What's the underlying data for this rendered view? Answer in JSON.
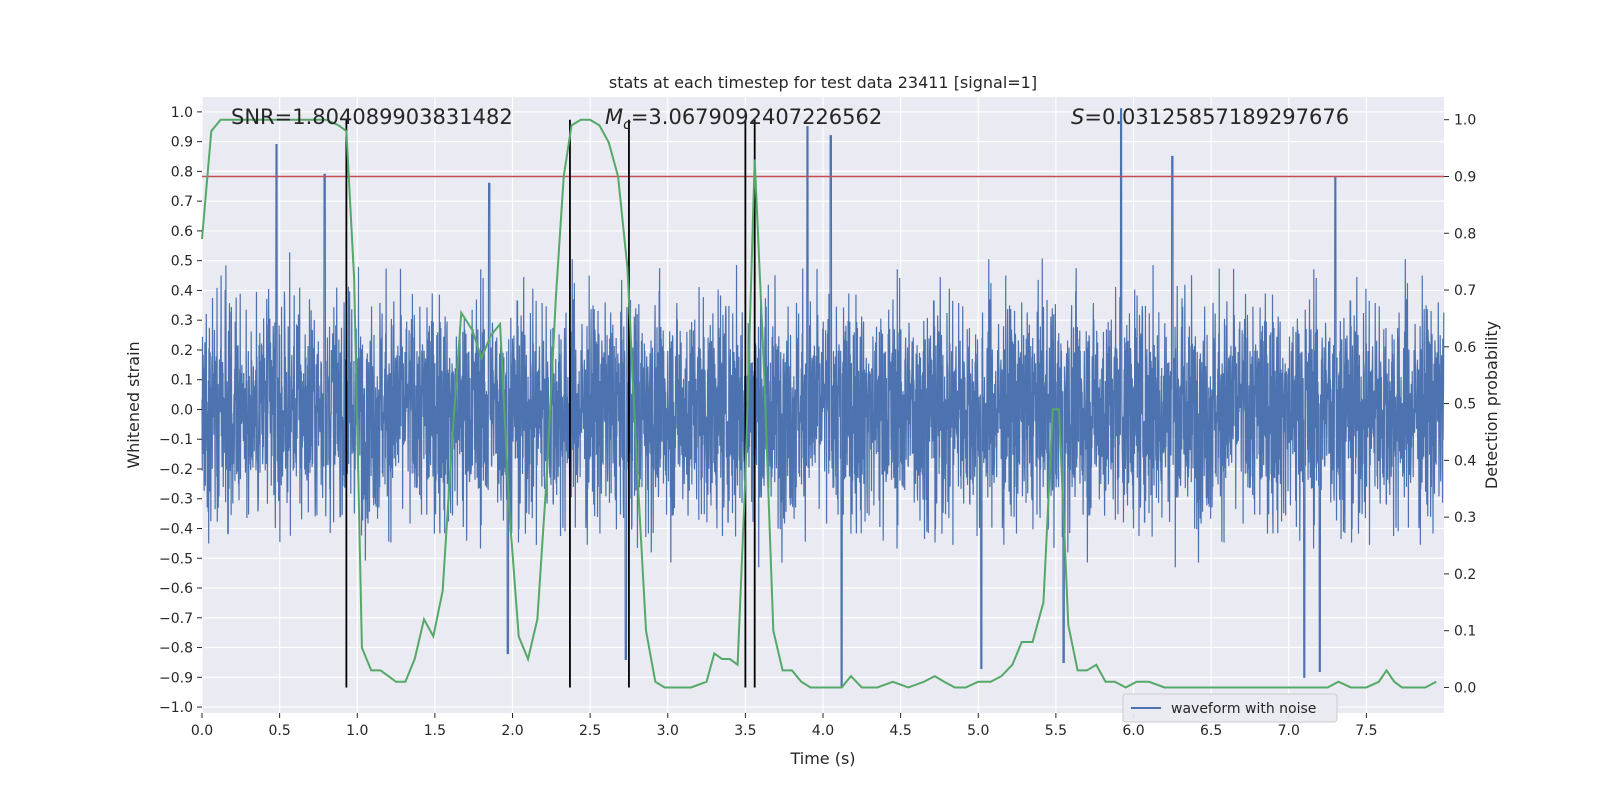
{
  "chart_data": {
    "type": "line",
    "title": "stats at each timestep for test data 23411 [signal=1]",
    "xlabel": "Time (s)",
    "ylabel": "Whitened strain",
    "y2label": "Detection probability",
    "xlim": [
      0.0,
      8.0
    ],
    "ylim": [
      -1.02,
      1.05
    ],
    "y2lim": [
      -0.045,
      1.04
    ],
    "x_ticks": [
      "0.0",
      "0.5",
      "1.0",
      "1.5",
      "2.0",
      "2.5",
      "3.0",
      "3.5",
      "4.0",
      "4.5",
      "5.0",
      "5.5",
      "6.0",
      "6.5",
      "7.0",
      "7.5"
    ],
    "y_ticks": [
      "1.0",
      "0.9",
      "0.8",
      "0.7",
      "0.6",
      "0.5",
      "0.4",
      "0.3",
      "0.2",
      "0.1",
      "0.0",
      "−0.1",
      "−0.2",
      "−0.3",
      "−0.4",
      "−0.5",
      "−0.6",
      "−0.7",
      "−0.8",
      "−0.9",
      "−1.0"
    ],
    "y2_ticks": [
      "1.0",
      "0.9",
      "0.8",
      "0.7",
      "0.6",
      "0.5",
      "0.4",
      "0.3",
      "0.2",
      "0.1",
      "0.0"
    ],
    "grid": true,
    "legend": {
      "placement": "bottom-right",
      "entries": [
        "waveform with noise"
      ]
    },
    "annotations": {
      "snr": "SNR=1.804089903831482",
      "mc_symbol": "M",
      "mc_sub": "c",
      "mc_value": "=3.0679092407226562",
      "s_symbol": "S",
      "s_value": "=0.03125857189297676"
    },
    "threshold_y2": 0.9,
    "vertical_lines_x": [
      0.93,
      2.37,
      2.75,
      3.5,
      3.56
    ],
    "vertical_lines_top_y2": 1.0,
    "series": [
      {
        "name": "waveform with noise",
        "color": "#4c72b0",
        "description_envelope": {
          "upper_typical": 0.6,
          "lower_typical": -0.55,
          "spikes_up": [
            [
              0.48,
              0.89
            ],
            [
              0.79,
              0.79
            ],
            [
              1.85,
              0.76
            ],
            [
              3.9,
              0.95
            ],
            [
              4.05,
              0.92
            ],
            [
              5.92,
              1.01
            ],
            [
              6.25,
              0.85
            ],
            [
              7.3,
              0.78
            ]
          ],
          "spikes_down": [
            [
              2.73,
              -0.84
            ],
            [
              1.97,
              -0.82
            ],
            [
              4.12,
              -0.93
            ],
            [
              5.02,
              -0.87
            ],
            [
              5.55,
              -0.85
            ],
            [
              7.1,
              -0.9
            ],
            [
              7.2,
              -0.88
            ]
          ]
        }
      },
      {
        "name": "detection probability",
        "color": "#55a868",
        "x": [
          0.0,
          0.06,
          0.12,
          0.2,
          0.3,
          0.4,
          0.5,
          0.6,
          0.7,
          0.8,
          0.88,
          0.93,
          0.98,
          1.03,
          1.09,
          1.15,
          1.2,
          1.25,
          1.31,
          1.37,
          1.43,
          1.49,
          1.55,
          1.61,
          1.67,
          1.74,
          1.8,
          1.86,
          1.92,
          1.98,
          2.04,
          2.1,
          2.16,
          2.22,
          2.28,
          2.33,
          2.38,
          2.44,
          2.5,
          2.56,
          2.62,
          2.68,
          2.74,
          2.8,
          2.86,
          2.92,
          2.98,
          3.05,
          3.15,
          3.25,
          3.3,
          3.35,
          3.4,
          3.45,
          3.5,
          3.56,
          3.62,
          3.68,
          3.74,
          3.8,
          3.86,
          3.92,
          3.98,
          4.05,
          4.12,
          4.18,
          4.25,
          4.35,
          4.45,
          4.55,
          4.65,
          4.72,
          4.78,
          4.85,
          4.92,
          5.0,
          5.08,
          5.15,
          5.22,
          5.28,
          5.35,
          5.42,
          5.48,
          5.52,
          5.58,
          5.64,
          5.7,
          5.76,
          5.82,
          5.88,
          5.95,
          6.02,
          6.1,
          6.2,
          6.35,
          6.5,
          6.65,
          6.8,
          6.95,
          7.1,
          7.25,
          7.32,
          7.4,
          7.5,
          7.58,
          7.63,
          7.68,
          7.73,
          7.8,
          7.88,
          7.95
        ],
        "y": [
          0.79,
          0.98,
          1.0,
          1.0,
          1.0,
          1.0,
          1.0,
          1.0,
          1.0,
          1.0,
          0.99,
          0.98,
          0.72,
          0.07,
          0.03,
          0.03,
          0.02,
          0.01,
          0.01,
          0.05,
          0.12,
          0.09,
          0.17,
          0.43,
          0.66,
          0.63,
          0.58,
          0.62,
          0.64,
          0.31,
          0.09,
          0.05,
          0.12,
          0.37,
          0.69,
          0.9,
          0.99,
          1.0,
          1.0,
          0.99,
          0.96,
          0.9,
          0.74,
          0.4,
          0.1,
          0.01,
          0.0,
          0.0,
          0.0,
          0.01,
          0.06,
          0.05,
          0.05,
          0.04,
          0.37,
          0.93,
          0.56,
          0.1,
          0.03,
          0.03,
          0.01,
          0.0,
          0.0,
          0.0,
          0.0,
          0.02,
          0.0,
          0.0,
          0.01,
          0.0,
          0.01,
          0.02,
          0.01,
          0.0,
          0.0,
          0.01,
          0.01,
          0.02,
          0.04,
          0.08,
          0.08,
          0.15,
          0.49,
          0.49,
          0.11,
          0.03,
          0.03,
          0.04,
          0.01,
          0.01,
          0.0,
          0.01,
          0.01,
          0.0,
          0.0,
          0.0,
          0.0,
          0.0,
          0.0,
          0.0,
          0.0,
          0.01,
          0.0,
          0.0,
          0.01,
          0.03,
          0.01,
          0.0,
          0.0,
          0.0,
          0.01
        ]
      }
    ]
  },
  "colors": {
    "background": "#eaeaf2",
    "grid": "#ffffff",
    "waveform": "#4c72b0",
    "probability": "#55a868",
    "threshold": "#c44e52",
    "vlines": "#000000"
  }
}
